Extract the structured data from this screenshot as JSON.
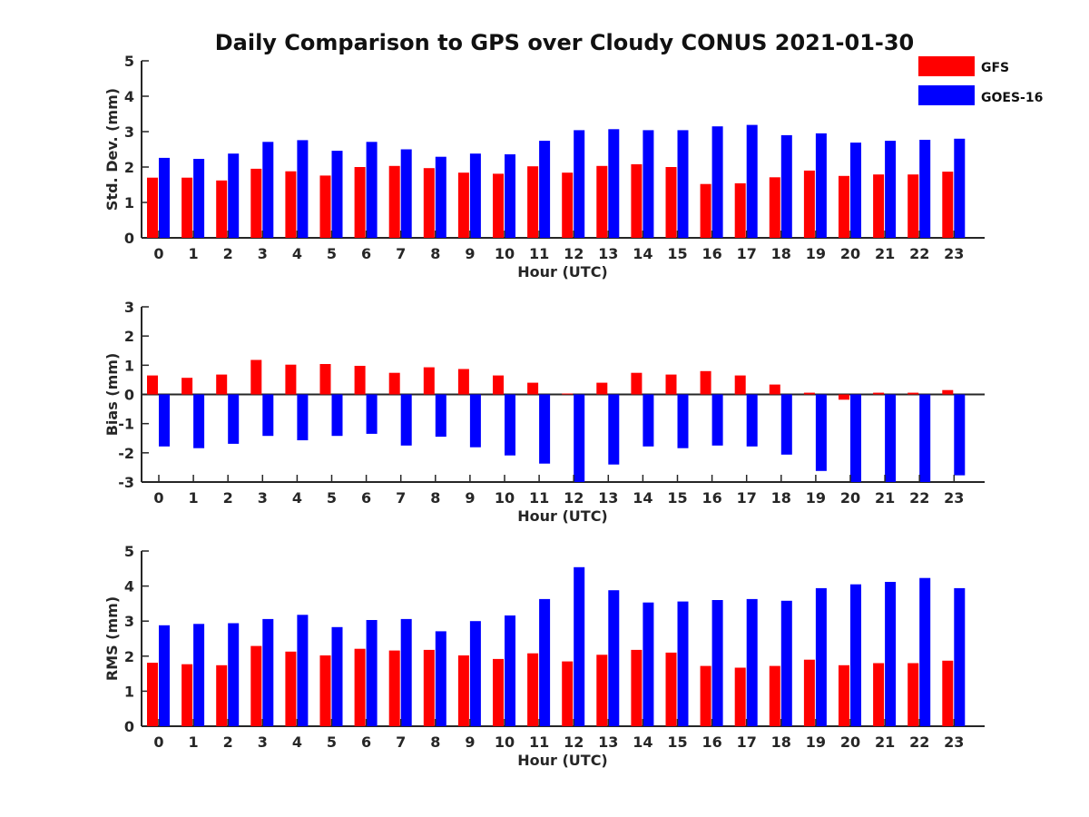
{
  "title": "Daily Comparison to GPS over Cloudy CONUS 2021-01-30",
  "legend": [
    {
      "name": "GFS",
      "color": "#ff0000"
    },
    {
      "name": "GOES-16",
      "color": "#0000ff"
    }
  ],
  "chart_data": [
    {
      "type": "bar",
      "xlabel": "Hour (UTC)",
      "ylabel": "Std. Dev. (mm)",
      "ylim": [
        0,
        5
      ],
      "yticks": [
        "0",
        "1",
        "2",
        "3",
        "4",
        "5"
      ],
      "categories": [
        "0",
        "1",
        "2",
        "3",
        "4",
        "5",
        "6",
        "7",
        "8",
        "9",
        "10",
        "11",
        "12",
        "13",
        "14",
        "15",
        "16",
        "17",
        "18",
        "19",
        "20",
        "21",
        "22",
        "23"
      ],
      "series": [
        {
          "name": "GFS",
          "color": "#ff0000",
          "values": [
            1.7,
            1.7,
            1.62,
            1.95,
            1.88,
            1.76,
            2.0,
            2.03,
            1.97,
            1.84,
            1.81,
            2.02,
            1.84,
            2.03,
            2.08,
            2.0,
            1.52,
            1.54,
            1.71,
            1.9,
            1.75,
            1.79,
            1.79,
            1.87
          ]
        },
        {
          "name": "GOES-16",
          "color": "#0000ff",
          "values": [
            2.26,
            2.23,
            2.38,
            2.71,
            2.76,
            2.46,
            2.71,
            2.5,
            2.29,
            2.38,
            2.36,
            2.74,
            3.04,
            3.07,
            3.04,
            3.04,
            3.15,
            3.19,
            2.9,
            2.95,
            2.69,
            2.74,
            2.77,
            2.8
          ]
        }
      ]
    },
    {
      "type": "bar",
      "xlabel": "Hour (UTC)",
      "ylabel": "Bias (mm)",
      "ylim": [
        -3,
        3
      ],
      "yticks": [
        "-3",
        "-2",
        "-1",
        "0",
        "1",
        "2",
        "3"
      ],
      "categories": [
        "0",
        "1",
        "2",
        "3",
        "4",
        "5",
        "6",
        "7",
        "8",
        "9",
        "10",
        "11",
        "12",
        "13",
        "14",
        "15",
        "16",
        "17",
        "18",
        "19",
        "20",
        "21",
        "22",
        "23"
      ],
      "series": [
        {
          "name": "GFS",
          "color": "#ff0000",
          "values": [
            0.65,
            0.57,
            0.68,
            1.18,
            1.02,
            1.04,
            0.98,
            0.74,
            0.93,
            0.87,
            0.65,
            0.4,
            0.03,
            0.4,
            0.74,
            0.68,
            0.8,
            0.65,
            0.34,
            0.06,
            -0.18,
            0.06,
            0.06,
            0.15
          ]
        },
        {
          "name": "GOES-16",
          "color": "#0000ff",
          "values": [
            -1.78,
            -1.84,
            -1.69,
            -1.42,
            -1.57,
            -1.42,
            -1.35,
            -1.75,
            -1.45,
            -1.81,
            -2.09,
            -2.37,
            -3.0,
            -2.4,
            -1.78,
            -1.84,
            -1.75,
            -1.78,
            -2.06,
            -2.62,
            -3.0,
            -3.0,
            -3.0,
            -2.77
          ]
        }
      ]
    },
    {
      "type": "bar",
      "xlabel": "Hour (UTC)",
      "ylabel": "RMS (mm)",
      "ylim": [
        0,
        5
      ],
      "yticks": [
        "0",
        "1",
        "2",
        "3",
        "4",
        "5"
      ],
      "categories": [
        "0",
        "1",
        "2",
        "3",
        "4",
        "5",
        "6",
        "7",
        "8",
        "9",
        "10",
        "11",
        "12",
        "13",
        "14",
        "15",
        "16",
        "17",
        "18",
        "19",
        "20",
        "21",
        "22",
        "23"
      ],
      "series": [
        {
          "name": "GFS",
          "color": "#ff0000",
          "values": [
            1.81,
            1.77,
            1.74,
            2.29,
            2.13,
            2.02,
            2.21,
            2.16,
            2.18,
            2.02,
            1.92,
            2.08,
            1.85,
            2.04,
            2.18,
            2.1,
            1.72,
            1.67,
            1.72,
            1.9,
            1.74,
            1.8,
            1.8,
            1.87
          ]
        },
        {
          "name": "GOES-16",
          "color": "#0000ff",
          "values": [
            2.88,
            2.92,
            2.94,
            3.06,
            3.18,
            2.83,
            3.03,
            3.06,
            2.71,
            3.0,
            3.16,
            3.63,
            4.54,
            3.88,
            3.53,
            3.56,
            3.6,
            3.63,
            3.58,
            3.94,
            4.05,
            4.12,
            4.23,
            3.94
          ]
        }
      ]
    }
  ]
}
